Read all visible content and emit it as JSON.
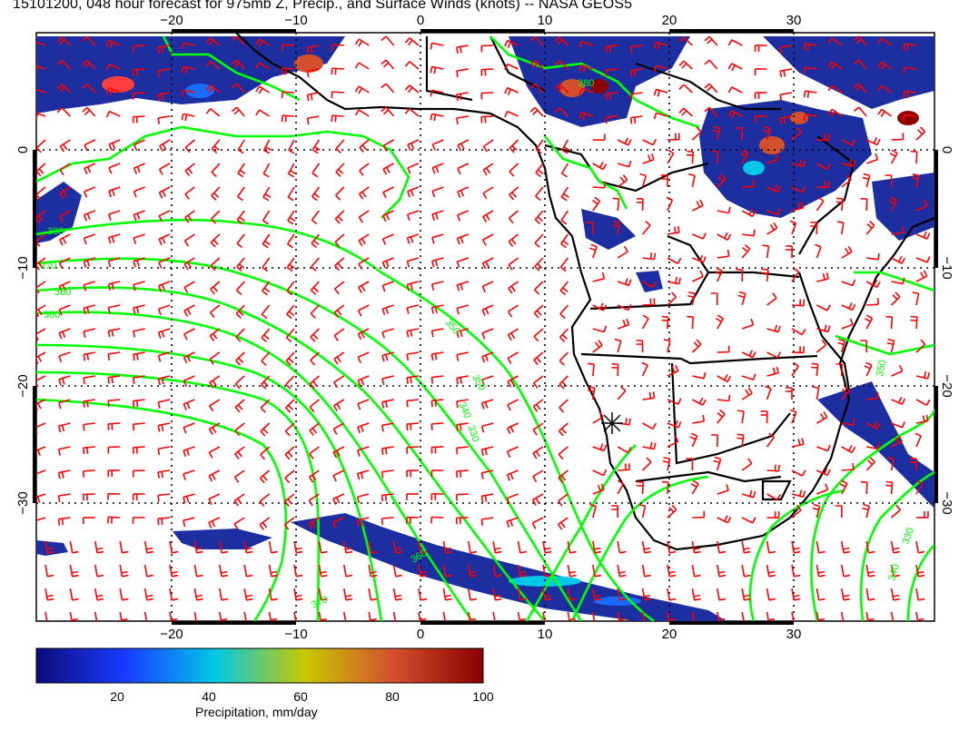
{
  "title": "15101200, 048 hour forecast for 975mb Z, Precip., and Surface Winds (knots) -- NASA GEOS5",
  "map": {
    "lon_ticks": [
      "−20",
      "−10",
      "0",
      "10",
      "20",
      "30"
    ],
    "lat_ticks": [
      "0",
      "−10",
      "−20",
      "−30"
    ],
    "lon_range": [
      -30,
      40
    ],
    "lat_range": [
      -40,
      10
    ],
    "contour_labels": [
      "380",
      "370",
      "380",
      "360",
      "350",
      "330",
      "340",
      "350",
      "360",
      "370",
      "380",
      "330",
      "340",
      "350"
    ],
    "colors": {
      "winds": "#ff0000",
      "contours": "#00ff00",
      "coastlines": "#000000",
      "grid": "#000000"
    }
  },
  "colorbar": {
    "label": "Precipitation, mm/day",
    "ticks": [
      "20",
      "40",
      "60",
      "80",
      "100"
    ],
    "range": [
      0,
      100
    ],
    "colors": [
      "#0c0c7a",
      "#1a3cff",
      "#00c8e6",
      "#c8c800",
      "#d2502d",
      "#8c0000"
    ]
  }
}
